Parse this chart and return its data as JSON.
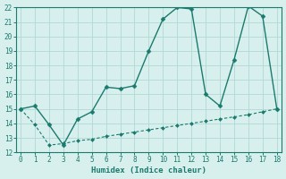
{
  "main_x": [
    0,
    1,
    2,
    3,
    4,
    5,
    6,
    7,
    8,
    9,
    10,
    11,
    12,
    13,
    14,
    15,
    16,
    17,
    18
  ],
  "main_y": [
    15.0,
    15.2,
    13.9,
    12.5,
    14.3,
    14.8,
    16.5,
    16.4,
    16.6,
    19.0,
    21.2,
    22.0,
    21.9,
    16.0,
    15.2,
    18.4,
    22.1,
    21.4,
    15.0
  ],
  "trend_x": [
    0,
    1,
    2,
    3,
    4,
    5,
    6,
    7,
    8,
    9,
    10,
    11,
    12,
    13,
    14,
    15,
    16,
    17,
    18
  ],
  "trend_y": [
    15.0,
    13.9,
    12.5,
    12.6,
    12.8,
    12.9,
    13.1,
    13.25,
    13.4,
    13.55,
    13.7,
    13.85,
    14.0,
    14.15,
    14.3,
    14.45,
    14.6,
    14.8,
    15.0
  ],
  "xlabel": "Humidex (Indice chaleur)",
  "xlim": [
    -0.3,
    18.3
  ],
  "ylim": [
    12,
    22
  ],
  "yticks": [
    12,
    13,
    14,
    15,
    16,
    17,
    18,
    19,
    20,
    21,
    22
  ],
  "xticks": [
    0,
    1,
    2,
    3,
    4,
    5,
    6,
    7,
    8,
    9,
    10,
    11,
    12,
    13,
    14,
    15,
    16,
    17,
    18
  ],
  "line_color": "#1a7a6e",
  "bg_color": "#d8f0ed",
  "grid_color": "#b0d8d4"
}
